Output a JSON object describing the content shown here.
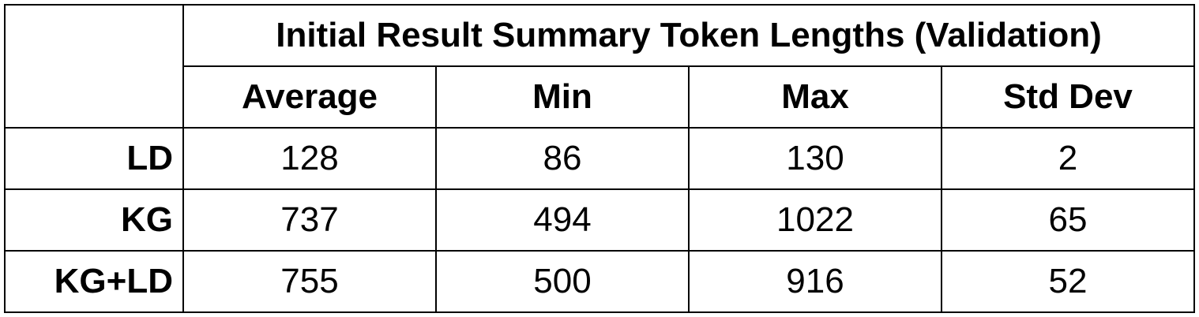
{
  "chart_data": {
    "type": "table",
    "title": "Initial Result Summary Token Lengths (Validation)",
    "columns": [
      "Average",
      "Min",
      "Max",
      "Std Dev"
    ],
    "rows": [
      {
        "label": "LD",
        "values": [
          "128",
          "86",
          "130",
          "2"
        ]
      },
      {
        "label": "KG",
        "values": [
          "737",
          "494",
          "1022",
          "65"
        ]
      },
      {
        "label": "KG+LD",
        "values": [
          "755",
          "500",
          "916",
          "52"
        ]
      }
    ]
  }
}
